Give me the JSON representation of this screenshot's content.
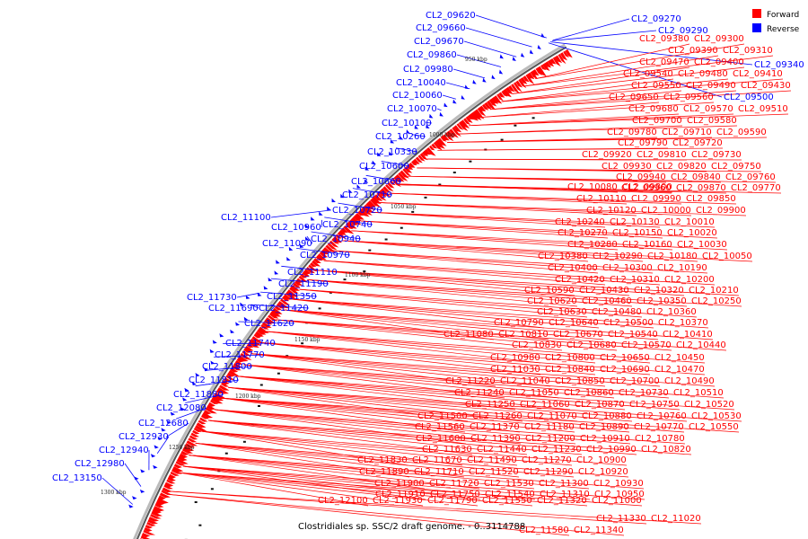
{
  "legend": {
    "forward_label": "Forward",
    "reverse_label": "Reverse",
    "forward_color": "#ff0000",
    "reverse_color": "#0000ff"
  },
  "caption": "Clostridiales sp. SSC/2 draft genome. - 0..3114788",
  "ticks": [
    "950 kbp",
    "1000 kbp",
    "1050 kbp",
    "1100 kbp",
    "1150 kbp",
    "1200 kbp",
    "1250 kbp",
    "1300 kbp"
  ],
  "reverse_genes": [
    "CL2_09270",
    "CL2_09290",
    "CL2_09340",
    "CL2_09500",
    "CL2_09620",
    "CL2_09660",
    "CL2_09670",
    "CL2_09860",
    "CL2_09980",
    "CL2_10040",
    "CL2_10060",
    "CL2_10070",
    "CL2_10100",
    "CL2_10260",
    "CL2_10330",
    "CL2_10600",
    "CL2_10660",
    "CL2_10710",
    "CL2_10720",
    "CL2_10740",
    "CL2_10940",
    "CL2_10960",
    "CL2_11100",
    "CL2_11090",
    "CL2_10970",
    "CL2_11110",
    "CL2_11190",
    "CL2_11350",
    "CL2_11730",
    "CL2_11690",
    "CL2_11420",
    "CL2_11620",
    "CL2_11740",
    "CL2_11770",
    "CL2_11800",
    "CL2_11810",
    "CL2_11880",
    "CL2_12080",
    "CL2_12680",
    "CL2_12930",
    "CL2_12940",
    "CL2_12980",
    "CL2_13150"
  ],
  "forward_genes": [
    "CL2_09380",
    "CL2_09300",
    "CL2_09390",
    "CL2_09310",
    "CL2_09470",
    "CL2_09400",
    "CL2_09540",
    "CL2_09480",
    "CL2_09410",
    "CL2_09550",
    "CL2_09490",
    "CL2_09430",
    "CL2_09650",
    "CL2_09560",
    "CL2_09680",
    "CL2_09570",
    "CL2_09510",
    "CL2_09700",
    "CL2_09580",
    "CL2_09780",
    "CL2_09710",
    "CL2_09590",
    "CL2_09790",
    "CL2_09720",
    "CL2_09920",
    "CL2_09810",
    "CL2_09730",
    "CL2_09930",
    "CL2_09820",
    "CL2_09750",
    "CL2_09940",
    "CL2_09840",
    "CL2_09760",
    "CL2_09960",
    "CL2_09870",
    "CL2_09770",
    "CL2_10080",
    "CL2_09800",
    "CL2_10110",
    "CL2_09990",
    "CL2_09850",
    "CL2_10120",
    "CL2_10000",
    "CL2_09900",
    "CL2_10240",
    "CL2_10130",
    "CL2_10010",
    "CL2_10270",
    "CL2_10150",
    "CL2_10020",
    "CL2_10280",
    "CL2_10160",
    "CL2_10030",
    "CL2_10380",
    "CL2_10290",
    "CL2_10180",
    "CL2_10050",
    "CL2_10400",
    "CL2_10300",
    "CL2_10190",
    "CL2_10420",
    "CL2_10310",
    "CL2_10200",
    "CL2_10590",
    "CL2_10430",
    "CL2_10320",
    "CL2_10210",
    "CL2_10620",
    "CL2_10460",
    "CL2_10350",
    "CL2_10250",
    "CL2_10630",
    "CL2_10480",
    "CL2_10360",
    "CL2_10790",
    "CL2_10640",
    "CL2_10500",
    "CL2_10370",
    "CL2_11080",
    "CL2_10810",
    "CL2_10670",
    "CL2_10540",
    "CL2_10410",
    "CL2_10830",
    "CL2_10680",
    "CL2_10570",
    "CL2_10440",
    "CL2_10980",
    "CL2_10800",
    "CL2_10650",
    "CL2_10450",
    "CL2_11030",
    "CL2_10840",
    "CL2_10690",
    "CL2_10470",
    "CL2_11220",
    "CL2_11040",
    "CL2_10850",
    "CL2_10700",
    "CL2_10490",
    "CL2_11240",
    "CL2_11050",
    "CL2_10860",
    "CL2_10730",
    "CL2_10510",
    "CL2_11250",
    "CL2_11060",
    "CL2_10870",
    "CL2_10750",
    "CL2_10520",
    "CL2_11500",
    "CL2_11260",
    "CL2_11070",
    "CL2_10880",
    "CL2_10760",
    "CL2_10530",
    "CL2_11560",
    "CL2_11370",
    "CL2_11180",
    "CL2_10890",
    "CL2_10770",
    "CL2_10550",
    "CL2_11600",
    "CL2_11390",
    "CL2_11200",
    "CL2_10910",
    "CL2_10780",
    "CL2_11630",
    "CL2_11440",
    "CL2_11230",
    "CL2_10990",
    "CL2_10820",
    "CL2_11830",
    "CL2_11670",
    "CL2_11490",
    "CL2_11270",
    "CL2_10900",
    "CL2_11890",
    "CL2_11710",
    "CL2_11520",
    "CL2_11290",
    "CL2_10920",
    "CL2_11900",
    "CL2_11720",
    "CL2_11530",
    "CL2_11300",
    "CL2_10930",
    "CL2_11910",
    "CL2_11750",
    "CL2_11540",
    "CL2_11310",
    "CL2_10950",
    "CL2_12100",
    "CL2_11930",
    "CL2_11790",
    "CL2_11550",
    "CL2_11320",
    "CL2_11000",
    "CL2_11330",
    "CL2_11020",
    "CL2_11580",
    "CL2_11340"
  ]
}
